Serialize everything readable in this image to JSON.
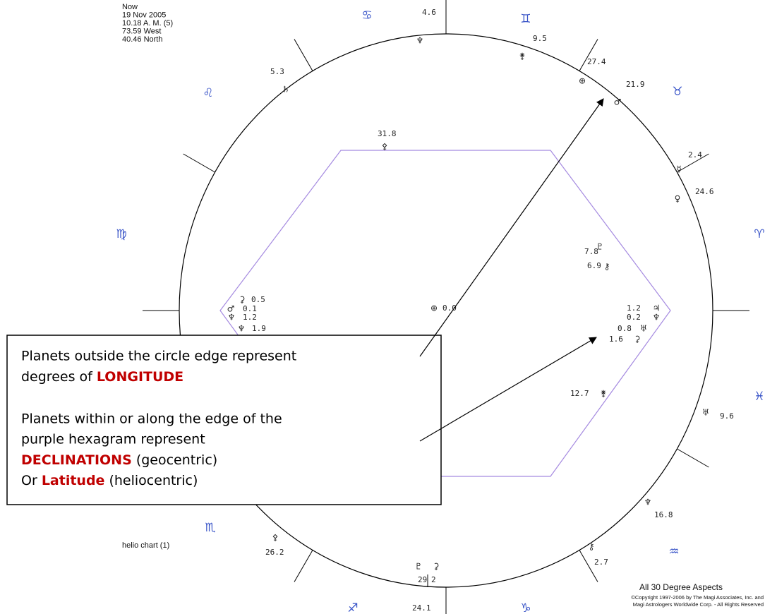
{
  "header": {
    "lines": [
      "Now",
      "19 Nov 2005",
      "10.18 A. M. (5)",
      "73.59 West",
      "40.46 North"
    ]
  },
  "signs": [
    "♋",
    "♊",
    "♉",
    "♈",
    "♓",
    "♒",
    "♑",
    "♐",
    "♏",
    "♍",
    "♌"
  ],
  "outer_points": [
    {
      "symbol": "♆",
      "label": "4.6"
    },
    {
      "symbol": "⚵",
      "label": "9.5"
    },
    {
      "symbol": "⊕",
      "label": "27.4"
    },
    {
      "symbol": "♂",
      "label": "21.9"
    },
    {
      "symbol": "☿",
      "label": "2.4"
    },
    {
      "symbol": "♀",
      "label": "24.6"
    },
    {
      "symbol": "♅",
      "label": "9.6"
    },
    {
      "symbol": "♆",
      "label": "16.8"
    },
    {
      "symbol": "⚷",
      "label": "2.7"
    },
    {
      "symbol": "⚳",
      "label": "2"
    },
    {
      "symbol": "♇",
      "label": "29"
    },
    {
      "symbol": "⚴",
      "label": "26.2"
    },
    {
      "symbol": "♄",
      "label": "5.3"
    }
  ],
  "outer_extra_label": "24.1",
  "inner_points": [
    {
      "symbol": "⚴",
      "label": "31.8"
    },
    {
      "symbol": "♇",
      "label": "7.8"
    },
    {
      "symbol": "⚷",
      "label": "6.9"
    },
    {
      "symbol": "♃",
      "label": "1.2"
    },
    {
      "symbol": "♆",
      "label": "0.2"
    },
    {
      "symbol": "♅",
      "label": "0.8"
    },
    {
      "symbol": "⚳",
      "label": "1.6"
    },
    {
      "symbol": "⚵",
      "label": "12.7"
    },
    {
      "symbol": "⚳",
      "label": "0.5"
    },
    {
      "symbol": "♂",
      "label": "0.1"
    },
    {
      "symbol": "♆",
      "label": "1.2"
    },
    {
      "symbol": "♆",
      "label": "1.9"
    }
  ],
  "center": {
    "symbol": "⊕",
    "label": "0.0"
  },
  "note": {
    "line1": "Planets outside the circle edge represent",
    "line2_prefix": "degrees of ",
    "line2_keyword": "LONGITUDE",
    "line3": "Planets within or along the edge of the",
    "line4": "purple hexagram represent",
    "line5_keyword": "DECLINATIONS",
    "line5_suffix": " (geocentric)",
    "line6_prefix": "Or ",
    "line6_keyword": "Latitude",
    "line6_suffix": " (heliocentric)"
  },
  "footer": {
    "chart_label": "helio chart (1)",
    "aspects": "All 30 Degree Aspects",
    "copyright1": "©Copyright 1997-2006 by The Magi Associates, Inc. and",
    "copyright2": "Magi Astrologers Worldwide Corp. - All Rights Reserved"
  }
}
